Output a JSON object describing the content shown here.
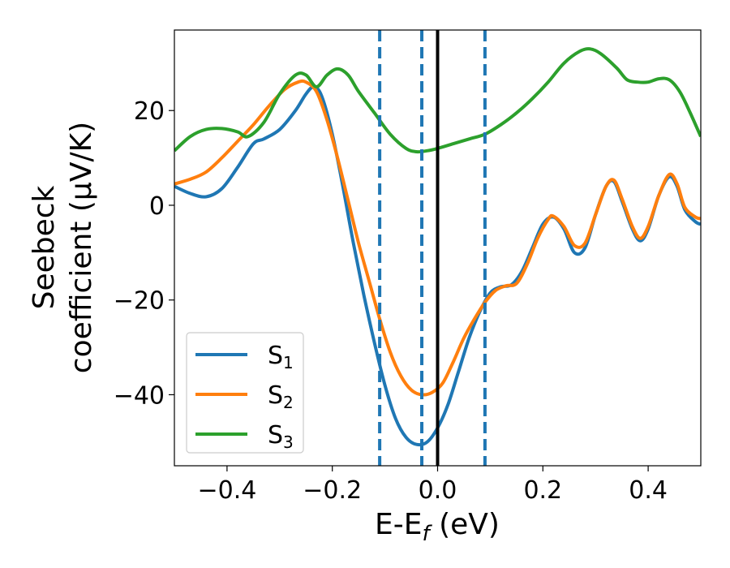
{
  "chart_data": {
    "type": "line",
    "xlabel": "E-E",
    "xlabel_sub": "f",
    "xlabel_unit": " (eV)",
    "ylabel_line1": "Seebeck",
    "ylabel_line2": "coefficient  (μV/K)",
    "xlim": [
      -0.5,
      0.5
    ],
    "ylim": [
      -55,
      37
    ],
    "xticks": [
      -0.4,
      -0.2,
      0.0,
      0.2,
      0.4
    ],
    "xtick_labels": [
      "−0.4",
      "−0.2",
      "0.0",
      "0.2",
      "0.4"
    ],
    "yticks": [
      -40,
      -20,
      0,
      20
    ],
    "ytick_labels": [
      "−40",
      "−20",
      "0",
      "20"
    ],
    "grid": false,
    "legend_position": "lower-left",
    "vertical_lines": [
      {
        "x": -0.11,
        "style": "dashed",
        "color": "#1f77b4"
      },
      {
        "x": -0.03,
        "style": "dashed",
        "color": "#1f77b4"
      },
      {
        "x": 0.0,
        "style": "solid",
        "color": "#000000"
      },
      {
        "x": 0.09,
        "style": "dashed",
        "color": "#1f77b4"
      }
    ],
    "series": [
      {
        "name": "S",
        "sub": "1",
        "color": "#1f77b4",
        "points": [
          [
            -0.5,
            4
          ],
          [
            -0.47,
            2.5
          ],
          [
            -0.44,
            1.8
          ],
          [
            -0.41,
            3.5
          ],
          [
            -0.38,
            8
          ],
          [
            -0.35,
            13
          ],
          [
            -0.33,
            14
          ],
          [
            -0.3,
            16
          ],
          [
            -0.27,
            20
          ],
          [
            -0.25,
            23.5
          ],
          [
            -0.235,
            25
          ],
          [
            -0.22,
            23
          ],
          [
            -0.2,
            15
          ],
          [
            -0.18,
            4
          ],
          [
            -0.16,
            -8
          ],
          [
            -0.14,
            -19
          ],
          [
            -0.12,
            -29
          ],
          [
            -0.1,
            -38
          ],
          [
            -0.08,
            -45
          ],
          [
            -0.06,
            -49
          ],
          [
            -0.04,
            -50.5
          ],
          [
            -0.02,
            -50
          ],
          [
            0.0,
            -47
          ],
          [
            0.02,
            -42
          ],
          [
            0.04,
            -35
          ],
          [
            0.06,
            -28
          ],
          [
            0.08,
            -22.5
          ],
          [
            0.1,
            -18.5
          ],
          [
            0.12,
            -17.2
          ],
          [
            0.14,
            -16.8
          ],
          [
            0.16,
            -14
          ],
          [
            0.18,
            -9
          ],
          [
            0.2,
            -4
          ],
          [
            0.22,
            -2.5
          ],
          [
            0.24,
            -5
          ],
          [
            0.26,
            -10
          ],
          [
            0.28,
            -9
          ],
          [
            0.3,
            -2
          ],
          [
            0.32,
            4
          ],
          [
            0.335,
            5
          ],
          [
            0.35,
            1
          ],
          [
            0.37,
            -5
          ],
          [
            0.385,
            -7.5
          ],
          [
            0.4,
            -5
          ],
          [
            0.42,
            2
          ],
          [
            0.44,
            6
          ],
          [
            0.455,
            4
          ],
          [
            0.47,
            -1
          ],
          [
            0.49,
            -3.5
          ],
          [
            0.5,
            -4
          ]
        ]
      },
      {
        "name": "S",
        "sub": "2",
        "color": "#ff7f0e",
        "points": [
          [
            -0.5,
            4.5
          ],
          [
            -0.47,
            5.5
          ],
          [
            -0.44,
            7
          ],
          [
            -0.41,
            10
          ],
          [
            -0.38,
            13.5
          ],
          [
            -0.35,
            17
          ],
          [
            -0.32,
            21
          ],
          [
            -0.29,
            24.5
          ],
          [
            -0.265,
            26
          ],
          [
            -0.25,
            26
          ],
          [
            -0.23,
            24
          ],
          [
            -0.21,
            18
          ],
          [
            -0.19,
            10
          ],
          [
            -0.17,
            1
          ],
          [
            -0.15,
            -8
          ],
          [
            -0.13,
            -16
          ],
          [
            -0.11,
            -24
          ],
          [
            -0.09,
            -31
          ],
          [
            -0.07,
            -36
          ],
          [
            -0.05,
            -39
          ],
          [
            -0.03,
            -40
          ],
          [
            -0.01,
            -39.5
          ],
          [
            0.01,
            -37.5
          ],
          [
            0.03,
            -33
          ],
          [
            0.05,
            -28
          ],
          [
            0.07,
            -24
          ],
          [
            0.09,
            -20.5
          ],
          [
            0.11,
            -18
          ],
          [
            0.13,
            -17
          ],
          [
            0.15,
            -16.5
          ],
          [
            0.17,
            -12.5
          ],
          [
            0.19,
            -7
          ],
          [
            0.21,
            -3
          ],
          [
            0.22,
            -2.3
          ],
          [
            0.24,
            -4.5
          ],
          [
            0.26,
            -8.5
          ],
          [
            0.28,
            -8
          ],
          [
            0.3,
            -2
          ],
          [
            0.32,
            4
          ],
          [
            0.335,
            5.3
          ],
          [
            0.35,
            1.5
          ],
          [
            0.37,
            -4.5
          ],
          [
            0.385,
            -7
          ],
          [
            0.4,
            -4.5
          ],
          [
            0.42,
            2
          ],
          [
            0.44,
            6.5
          ],
          [
            0.455,
            4.5
          ],
          [
            0.47,
            -0.5
          ],
          [
            0.49,
            -2.5
          ],
          [
            0.5,
            -2.8
          ]
        ]
      },
      {
        "name": "S",
        "sub": "3",
        "color": "#2ca02c",
        "points": [
          [
            -0.5,
            11.5
          ],
          [
            -0.47,
            14.5
          ],
          [
            -0.44,
            16
          ],
          [
            -0.41,
            16.2
          ],
          [
            -0.38,
            15.5
          ],
          [
            -0.36,
            14.5
          ],
          [
            -0.33,
            17.5
          ],
          [
            -0.3,
            23.5
          ],
          [
            -0.27,
            27.5
          ],
          [
            -0.25,
            27.5
          ],
          [
            -0.23,
            25
          ],
          [
            -0.21,
            27.5
          ],
          [
            -0.19,
            28.8
          ],
          [
            -0.17,
            27.5
          ],
          [
            -0.15,
            24
          ],
          [
            -0.12,
            19.5
          ],
          [
            -0.09,
            15
          ],
          [
            -0.06,
            12
          ],
          [
            -0.04,
            11.3
          ],
          [
            -0.02,
            11.5
          ],
          [
            0.0,
            12
          ],
          [
            0.03,
            13
          ],
          [
            0.06,
            14
          ],
          [
            0.09,
            15
          ],
          [
            0.12,
            17
          ],
          [
            0.15,
            19.5
          ],
          [
            0.18,
            22.5
          ],
          [
            0.21,
            26
          ],
          [
            0.24,
            30
          ],
          [
            0.27,
            32.5
          ],
          [
            0.29,
            33
          ],
          [
            0.31,
            32
          ],
          [
            0.34,
            29
          ],
          [
            0.36,
            26.5
          ],
          [
            0.38,
            26
          ],
          [
            0.4,
            26
          ],
          [
            0.42,
            26.7
          ],
          [
            0.44,
            26.5
          ],
          [
            0.46,
            24
          ],
          [
            0.48,
            19.5
          ],
          [
            0.5,
            14.5
          ]
        ]
      }
    ]
  }
}
